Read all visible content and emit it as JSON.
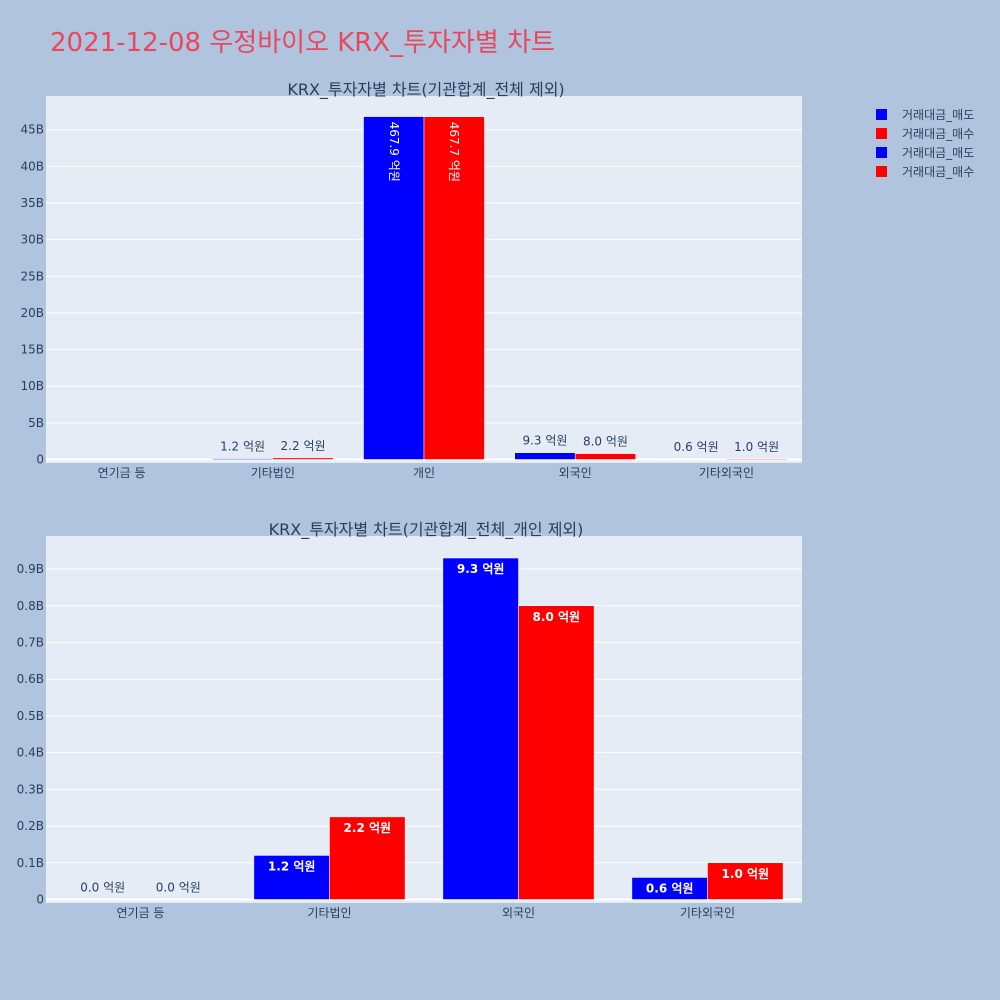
{
  "title": "2021-12-08 우정바이오 KRX_투자자별 차트",
  "colors": {
    "sell": "#0000ff",
    "buy": "#ff0000",
    "plot_bg": "#e5ecf6",
    "page_bg": "#b0c4de",
    "title": "#e8485f"
  },
  "legend": {
    "placement": "right",
    "items": [
      {
        "label": "거래대금_매도",
        "color": "#0000ff"
      },
      {
        "label": "거래대금_매수",
        "color": "#ff0000"
      },
      {
        "label": "거래대금_매도",
        "color": "#0000ff"
      },
      {
        "label": "거래대금_매수",
        "color": "#ff0000"
      }
    ]
  },
  "chart_data": [
    {
      "type": "bar",
      "title": "KRX_투자자별 차트(기관합계_전체 제외)",
      "categories": [
        "연기금 등",
        "기타법인",
        "개인",
        "외국인",
        "기타외국인"
      ],
      "series": [
        {
          "name": "거래대금_매도",
          "values": [
            0,
            0.12,
            46.79,
            0.93,
            0.06
          ],
          "labels": [
            "",
            "1.2 억원",
            "467.9 억원",
            "9.3 억원",
            "0.6 억원"
          ]
        },
        {
          "name": "거래대금_매수",
          "values": [
            0,
            0.22,
            46.77,
            0.8,
            0.1
          ],
          "labels": [
            "",
            "2.2 억원",
            "467.7 억원",
            "8.0 억원",
            "1.0 억원"
          ]
        }
      ],
      "ylim": [
        0,
        49.6
      ],
      "yticks": [
        0,
        5,
        10,
        15,
        20,
        25,
        30,
        35,
        40,
        45
      ],
      "ytick_labels": [
        "0",
        "5B",
        "10B",
        "15B",
        "20B",
        "25B",
        "30B",
        "35B",
        "40B",
        "45B"
      ],
      "grid": true
    },
    {
      "type": "bar",
      "title": "KRX_투자자별 차트(기관합계_전체_개인 제외)",
      "categories": [
        "연기금 등",
        "기타법인",
        "외국인",
        "기타외국인"
      ],
      "series": [
        {
          "name": "거래대금_매도",
          "values": [
            0.0,
            0.12,
            0.93,
            0.06
          ],
          "labels": [
            "0.0 억원",
            "1.2 억원",
            "9.3 억원",
            "0.6 억원"
          ]
        },
        {
          "name": "거래대금_매수",
          "values": [
            0.0,
            0.225,
            0.8,
            0.1
          ],
          "labels": [
            "0.0 억원",
            "2.2 억원",
            "8.0 억원",
            "1.0 억원"
          ]
        }
      ],
      "ylim": [
        0,
        0.99
      ],
      "yticks": [
        0,
        0.1,
        0.2,
        0.3,
        0.4,
        0.5,
        0.6,
        0.7,
        0.8,
        0.9
      ],
      "ytick_labels": [
        "0",
        "0.1B",
        "0.2B",
        "0.3B",
        "0.4B",
        "0.5B",
        "0.6B",
        "0.7B",
        "0.8B",
        "0.9B"
      ],
      "grid": true
    }
  ]
}
